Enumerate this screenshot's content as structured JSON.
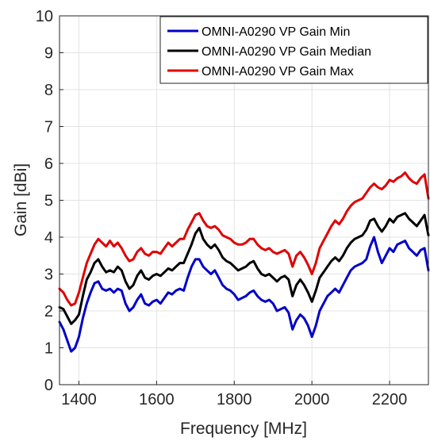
{
  "chart_data": {
    "type": "line",
    "xlabel": "Frequency [MHz]",
    "ylabel": "Gain [dBi]",
    "xlim": [
      1350,
      2300
    ],
    "ylim": [
      0,
      10
    ],
    "xticks": [
      1400,
      1600,
      1800,
      2000,
      2200
    ],
    "yticks": [
      0,
      1,
      2,
      3,
      4,
      5,
      6,
      7,
      8,
      9,
      10
    ],
    "grid": true,
    "legend_position": "top-right",
    "x": [
      1350,
      1360,
      1370,
      1380,
      1390,
      1400,
      1410,
      1420,
      1430,
      1440,
      1450,
      1460,
      1470,
      1480,
      1490,
      1500,
      1510,
      1520,
      1530,
      1540,
      1550,
      1560,
      1570,
      1580,
      1590,
      1600,
      1610,
      1620,
      1630,
      1640,
      1650,
      1660,
      1670,
      1680,
      1690,
      1700,
      1710,
      1720,
      1730,
      1740,
      1750,
      1760,
      1770,
      1780,
      1790,
      1800,
      1810,
      1820,
      1830,
      1840,
      1850,
      1860,
      1870,
      1880,
      1890,
      1900,
      1910,
      1920,
      1930,
      1940,
      1950,
      1960,
      1970,
      1980,
      1990,
      2000,
      2010,
      2020,
      2030,
      2040,
      2050,
      2060,
      2070,
      2080,
      2090,
      2100,
      2110,
      2120,
      2130,
      2140,
      2150,
      2160,
      2170,
      2180,
      2190,
      2200,
      2210,
      2220,
      2230,
      2240,
      2250,
      2260,
      2270,
      2280,
      2290,
      2300
    ],
    "series": [
      {
        "name": "OMNI-A0290 VP Gain Min",
        "color": "#0000c8",
        "values": [
          1.7,
          1.5,
          1.2,
          0.9,
          1.0,
          1.3,
          1.8,
          2.2,
          2.5,
          2.75,
          2.8,
          2.6,
          2.55,
          2.6,
          2.5,
          2.6,
          2.55,
          2.2,
          2.0,
          2.1,
          2.3,
          2.45,
          2.2,
          2.15,
          2.25,
          2.3,
          2.2,
          2.35,
          2.5,
          2.45,
          2.55,
          2.6,
          2.55,
          2.9,
          3.2,
          3.4,
          3.4,
          3.2,
          3.1,
          3.0,
          3.1,
          2.9,
          2.7,
          2.6,
          2.55,
          2.45,
          2.3,
          2.35,
          2.4,
          2.5,
          2.55,
          2.4,
          2.3,
          2.25,
          2.3,
          2.2,
          2.0,
          2.05,
          2.1,
          1.95,
          1.5,
          1.75,
          1.9,
          1.8,
          1.6,
          1.3,
          1.6,
          2.0,
          2.2,
          2.4,
          2.5,
          2.6,
          2.5,
          2.7,
          2.9,
          3.1,
          3.2,
          3.25,
          3.3,
          3.4,
          3.75,
          4.0,
          3.6,
          3.3,
          3.5,
          3.7,
          3.6,
          3.8,
          3.85,
          3.9,
          3.7,
          3.6,
          3.5,
          3.65,
          3.7,
          3.1
        ]
      },
      {
        "name": "OMNI-A0290 VP Gain Median",
        "color": "#000000",
        "values": [
          2.1,
          2.05,
          1.85,
          1.65,
          1.75,
          1.9,
          2.4,
          2.85,
          3.05,
          3.3,
          3.4,
          3.2,
          3.05,
          3.1,
          3.05,
          3.2,
          3.1,
          2.8,
          2.6,
          2.7,
          2.95,
          3.1,
          2.9,
          2.85,
          2.95,
          3.0,
          2.95,
          3.05,
          3.15,
          3.1,
          3.2,
          3.3,
          3.3,
          3.55,
          3.8,
          4.1,
          4.25,
          3.95,
          3.8,
          3.7,
          3.8,
          3.65,
          3.45,
          3.35,
          3.3,
          3.2,
          3.1,
          3.15,
          3.2,
          3.3,
          3.35,
          3.15,
          3.0,
          2.95,
          3.0,
          2.9,
          2.8,
          2.9,
          2.95,
          2.85,
          2.4,
          2.7,
          2.85,
          2.7,
          2.5,
          2.25,
          2.55,
          2.9,
          3.05,
          3.2,
          3.35,
          3.45,
          3.35,
          3.5,
          3.7,
          3.85,
          3.95,
          4.0,
          4.05,
          4.2,
          4.45,
          4.5,
          4.3,
          4.15,
          4.3,
          4.5,
          4.4,
          4.55,
          4.6,
          4.65,
          4.5,
          4.4,
          4.3,
          4.45,
          4.6,
          4.05
        ]
      },
      {
        "name": "OMNI-A0290 VP Gain Max",
        "color": "#e00000",
        "values": [
          2.6,
          2.5,
          2.3,
          2.15,
          2.2,
          2.5,
          2.9,
          3.3,
          3.55,
          3.8,
          3.95,
          3.85,
          3.75,
          3.9,
          3.75,
          3.85,
          3.7,
          3.5,
          3.35,
          3.4,
          3.6,
          3.7,
          3.55,
          3.5,
          3.6,
          3.6,
          3.55,
          3.7,
          3.85,
          3.75,
          3.85,
          3.95,
          3.95,
          4.2,
          4.4,
          4.6,
          4.65,
          4.45,
          4.3,
          4.25,
          4.3,
          4.2,
          4.05,
          4.0,
          3.95,
          3.85,
          3.8,
          3.8,
          3.85,
          3.95,
          3.95,
          3.8,
          3.7,
          3.65,
          3.7,
          3.6,
          3.55,
          3.6,
          3.65,
          3.55,
          3.2,
          3.5,
          3.6,
          3.45,
          3.25,
          3.0,
          3.3,
          3.7,
          3.9,
          4.1,
          4.3,
          4.45,
          4.35,
          4.5,
          4.7,
          4.85,
          4.95,
          5.0,
          5.05,
          5.2,
          5.35,
          5.45,
          5.35,
          5.3,
          5.4,
          5.55,
          5.5,
          5.6,
          5.65,
          5.75,
          5.6,
          5.5,
          5.45,
          5.6,
          5.7,
          5.05
        ]
      }
    ]
  }
}
